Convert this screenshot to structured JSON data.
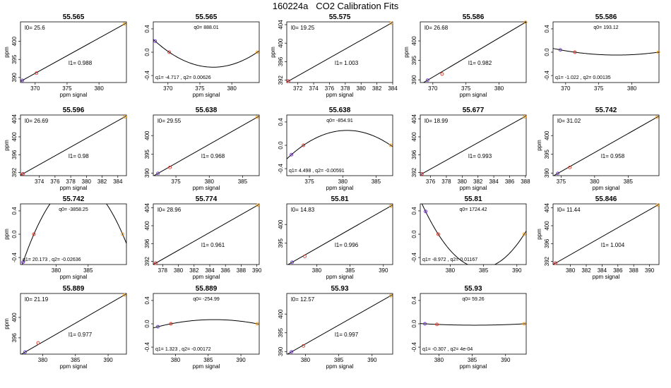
{
  "title": "160224a   CO2 Calibration Fits",
  "colors": {
    "point1": "#6b2bd6",
    "point2": "#e0301e",
    "point3": "#f5a623",
    "line": "#000000"
  },
  "chart_data": [
    {
      "type": "line",
      "title": "55.565",
      "xlabel": "ppm signal",
      "ylabel": "ppm",
      "xticks": [
        "370",
        "375",
        "380"
      ],
      "yticks": [
        "390",
        "395",
        "400"
      ],
      "xlim": [
        367.7,
        384.3
      ],
      "ylim": [
        388.6,
        405.4
      ],
      "points": [
        {
          "x": 368.0,
          "y": 389.2
        },
        {
          "x": 370.2,
          "y": 391.2
        },
        {
          "x": 384.0,
          "y": 404.8
        }
      ],
      "coef_labels": [
        "l0= 25.6",
        "l1= 0.988"
      ]
    },
    {
      "type": "curve",
      "title": "55.565",
      "xlabel": "ppm signal",
      "ylabel": "",
      "xticks": [
        "370",
        "375",
        "380"
      ],
      "yticks": [
        "-0.4",
        "0.0",
        "0.4"
      ],
      "xlim": [
        367.7,
        384.3
      ],
      "ylim": [
        -0.52,
        0.52
      ],
      "points": [
        {
          "x": 368.0,
          "y": 0.19
        },
        {
          "x": 370.2,
          "y": 0.0
        },
        {
          "x": 384.0,
          "y": 0.0
        }
      ],
      "coef_labels": [
        "q0= 888.01",
        "q1= -4.717 , q2= 0.00626"
      ]
    },
    {
      "type": "line",
      "title": "55.575",
      "xlabel": "ppm signal",
      "ylabel": "ppm",
      "xticks": [
        "372",
        "374",
        "376",
        "378",
        "380",
        "382",
        "384"
      ],
      "yticks": [
        "392",
        "396",
        "400",
        "404"
      ],
      "xlim": [
        370.6,
        384.0
      ],
      "ylim": [
        391.5,
        404.6
      ],
      "points": [
        {
          "x": 370.8,
          "y": 391.8
        },
        {
          "x": 370.8,
          "y": 391.8
        },
        {
          "x": 383.8,
          "y": 404.3
        }
      ],
      "coef_labels": [
        "l0= 19.25",
        "l1= 1.003"
      ]
    },
    {
      "type": "line",
      "title": "55.586",
      "xlabel": "ppm signal",
      "ylabel": "ppm",
      "xticks": [
        "370",
        "375",
        "380"
      ],
      "yticks": [
        "390",
        "395",
        "400"
      ],
      "xlim": [
        368.1,
        384.1
      ],
      "ylim": [
        389.3,
        404.9
      ],
      "points": [
        {
          "x": 369.2,
          "y": 389.9
        },
        {
          "x": 371.4,
          "y": 391.5
        },
        {
          "x": 384.0,
          "y": 404.8
        }
      ],
      "coef_labels": [
        "l0= 26.68",
        "l1= 0.982"
      ]
    },
    {
      "type": "curve",
      "title": "55.586",
      "xlabel": "",
      "ylabel": "",
      "xticks": [
        "370",
        "375",
        "380"
      ],
      "yticks": [
        "-0.4",
        "0.0",
        "0.4"
      ],
      "xlim": [
        368.1,
        384.1
      ],
      "ylim": [
        -0.52,
        0.52
      ],
      "points": [
        {
          "x": 369.2,
          "y": 0.04
        },
        {
          "x": 371.4,
          "y": 0.0
        },
        {
          "x": 384.0,
          "y": 0.0
        }
      ],
      "coef_labels": [
        "q0= 193.12",
        "q1= -1.022 , q2= 0.00135"
      ]
    },
    {
      "type": "line",
      "title": "55.596",
      "xlabel": "ppm signal",
      "ylabel": "ppm",
      "xticks": [
        "374",
        "376",
        "378",
        "380",
        "382",
        "384"
      ],
      "yticks": [
        "392",
        "396",
        "400",
        "404"
      ],
      "xlim": [
        371.6,
        385.1
      ],
      "ylim": [
        391.3,
        404.9
      ],
      "points": [
        {
          "x": 371.9,
          "y": 391.7
        },
        {
          "x": 371.9,
          "y": 391.7
        },
        {
          "x": 384.9,
          "y": 404.5
        }
      ],
      "coef_labels": [
        "l0= 26.69",
        "l1= 0.98"
      ]
    },
    {
      "type": "line",
      "title": "55.638",
      "xlabel": "ppm signal",
      "ylabel": "",
      "xticks": [
        "375",
        "380",
        "385"
      ],
      "yticks": [
        "390",
        "395",
        "400"
      ],
      "xlim": [
        371.6,
        387.5
      ],
      "ylim": [
        389.3,
        405.5
      ],
      "points": [
        {
          "x": 372.3,
          "y": 389.9
        },
        {
          "x": 374.1,
          "y": 391.5
        },
        {
          "x": 387.2,
          "y": 404.9
        }
      ],
      "coef_labels": [
        "l0= 29.55",
        "l1= 0.968"
      ]
    },
    {
      "type": "curve",
      "title": "55.638",
      "xlabel": "ppm signal",
      "ylabel": "",
      "xticks": [
        "375",
        "380",
        "385"
      ],
      "yticks": [
        "-0.4",
        "0.0",
        "0.4"
      ],
      "xlim": [
        371.6,
        387.5
      ],
      "ylim": [
        -0.52,
        0.52
      ],
      "points": [
        {
          "x": 372.3,
          "y": -0.16
        },
        {
          "x": 374.1,
          "y": 0.0
        },
        {
          "x": 387.2,
          "y": 0.0
        }
      ],
      "coef_labels": [
        "q0= -854.91",
        "q1= 4.498 , q2= -0.00591"
      ]
    },
    {
      "type": "line",
      "title": "55.677",
      "xlabel": "ppm signal",
      "ylabel": "",
      "xticks": [
        "376",
        "378",
        "380",
        "382",
        "384",
        "386",
        "388"
      ],
      "yticks": [
        "392",
        "396",
        "400",
        "404"
      ],
      "xlim": [
        374.7,
        388.1
      ],
      "ylim": [
        391.3,
        404.9
      ],
      "points": [
        {
          "x": 374.9,
          "y": 391.7
        },
        {
          "x": 374.9,
          "y": 391.7
        },
        {
          "x": 387.9,
          "y": 404.5
        }
      ],
      "coef_labels": [
        "l0= 18.99",
        "l1= 0.993"
      ]
    },
    {
      "type": "line",
      "title": "55.742",
      "xlabel": "ppm signal",
      "ylabel": "ppm",
      "xticks": [
        "375",
        "380",
        "385"
      ],
      "yticks": [
        "390",
        "395",
        "400"
      ],
      "xlim": [
        373.8,
        389.6
      ],
      "ylim": [
        389.3,
        405.5
      ],
      "points": [
        {
          "x": 374.5,
          "y": 389.9
        },
        {
          "x": 376.3,
          "y": 391.5
        },
        {
          "x": 389.3,
          "y": 404.9
        }
      ],
      "coef_labels": [
        "l0= 31.02",
        "l1= 0.958"
      ]
    },
    {
      "type": "curve",
      "title": "55.742",
      "xlabel": "ppm signal",
      "ylabel": "ppm",
      "xticks": [
        "380",
        "385"
      ],
      "yticks": [
        "-0.4",
        "0.0",
        "0.4"
      ],
      "xlim": [
        374.4,
        391.0
      ],
      "ylim": [
        -0.52,
        0.52
      ],
      "points": [
        {
          "x": 374.8,
          "y": -0.48
        },
        {
          "x": 376.5,
          "y": 0.0
        },
        {
          "x": 390.4,
          "y": 0.0
        }
      ],
      "coef_labels": [
        "q0= -3858.25",
        "q1= 20.173 , q2= -0.02636"
      ]
    },
    {
      "type": "line",
      "title": "55.774",
      "xlabel": "ppm signal",
      "ylabel": "",
      "xticks": [
        "378",
        "380",
        "382",
        "384",
        "386",
        "388",
        "390"
      ],
      "yticks": [
        "392",
        "396",
        "400",
        "404"
      ],
      "xlim": [
        376.8,
        390.3
      ],
      "ylim": [
        391.3,
        404.9
      ],
      "points": [
        {
          "x": 377.1,
          "y": 391.6
        },
        {
          "x": 377.1,
          "y": 391.6
        },
        {
          "x": 390.1,
          "y": 404.6
        }
      ],
      "coef_labels": [
        "l0= 28.96",
        "l1= 0.961"
      ]
    },
    {
      "type": "line",
      "title": "55.81",
      "xlabel": "ppm signal",
      "ylabel": "",
      "xticks": [
        "380",
        "385",
        "390"
      ],
      "yticks": [
        "395",
        "400"
      ],
      "xlim": [
        375.5,
        391.4
      ],
      "ylim": [
        389.3,
        405.5
      ],
      "points": [
        {
          "x": 376.3,
          "y": 389.9
        },
        {
          "x": 378.2,
          "y": 391.5
        },
        {
          "x": 391.1,
          "y": 404.9
        }
      ],
      "coef_labels": [
        "l0= 14.83",
        "l1= 0.996"
      ]
    },
    {
      "type": "curve",
      "title": "55.81",
      "xlabel": "",
      "ylabel": "",
      "xticks": [
        "380",
        "385",
        "390"
      ],
      "yticks": [
        "-0.4",
        "0.0",
        "0.4"
      ],
      "xlim": [
        375.5,
        391.4
      ],
      "ylim": [
        -0.52,
        0.52
      ],
      "points": [
        {
          "x": 376.3,
          "y": 0.39
        },
        {
          "x": 378.2,
          "y": 0.0
        },
        {
          "x": 391.1,
          "y": 0.0
        }
      ],
      "coef_labels": [
        "q0= 1724.42",
        "q1= -8.972 , q2= 0.01167"
      ]
    },
    {
      "type": "line",
      "title": "55.846",
      "xlabel": "ppm signal",
      "ylabel": "ppm",
      "xticks": [
        "380",
        "382",
        "384",
        "386",
        "388",
        "390"
      ],
      "yticks": [
        "392",
        "396",
        "400",
        "404"
      ],
      "xlim": [
        377.8,
        391.2
      ],
      "ylim": [
        391.3,
        404.9
      ],
      "points": [
        {
          "x": 378.1,
          "y": 391.6
        },
        {
          "x": 378.1,
          "y": 391.6
        },
        {
          "x": 391.0,
          "y": 404.6
        }
      ],
      "coef_labels": [
        "l0= 11.44",
        "l1= 1.004"
      ]
    },
    {
      "type": "line",
      "title": "55.889",
      "xlabel": "ppm signal",
      "ylabel": "ppm",
      "xticks": [
        "380",
        "385",
        "390"
      ],
      "yticks": [
        "396",
        "400"
      ],
      "xlim": [
        376.6,
        392.8
      ],
      "ylim": [
        392.8,
        404.7
      ],
      "points": [
        {
          "x": 377.3,
          "y": 393.2
        },
        {
          "x": 379.3,
          "y": 395.0
        },
        {
          "x": 392.5,
          "y": 404.4
        }
      ],
      "coef_labels": [
        "l0= 21.19",
        "l1= 0.977"
      ]
    },
    {
      "type": "curve",
      "title": "55.889",
      "xlabel": "ppm signal",
      "ylabel": "",
      "xticks": [
        "380",
        "385",
        "390"
      ],
      "yticks": [
        "-0.4",
        "0.0",
        "0.4"
      ],
      "xlim": [
        376.6,
        392.8
      ],
      "ylim": [
        -0.52,
        0.52
      ],
      "points": [
        {
          "x": 377.3,
          "y": -0.05
        },
        {
          "x": 379.3,
          "y": 0.0
        },
        {
          "x": 392.5,
          "y": 0.0
        }
      ],
      "coef_labels": [
        "q0= -254.99",
        "q1= 1.323 , q2= -0.00172"
      ]
    },
    {
      "type": "line",
      "title": "55.93",
      "xlabel": "ppm signal",
      "ylabel": "",
      "xticks": [
        "380",
        "385",
        "390"
      ],
      "yticks": [
        "390",
        "395",
        "400"
      ],
      "xlim": [
        377.2,
        393.1
      ],
      "ylim": [
        389.3,
        405.5
      ],
      "points": [
        {
          "x": 377.9,
          "y": 389.9
        },
        {
          "x": 379.7,
          "y": 391.5
        },
        {
          "x": 392.8,
          "y": 404.9
        }
      ],
      "coef_labels": [
        "l0= 12.57",
        "l1= 0.997"
      ]
    },
    {
      "type": "curve",
      "title": "55.93",
      "xlabel": "ppm signal",
      "ylabel": "",
      "xticks": [
        "380",
        "385",
        "390"
      ],
      "yticks": [
        "-0.4",
        "0.0",
        "0.4"
      ],
      "xlim": [
        377.2,
        393.1
      ],
      "ylim": [
        -0.52,
        0.52
      ],
      "points": [
        {
          "x": 377.9,
          "y": 0.0
        },
        {
          "x": 379.7,
          "y": -0.01
        },
        {
          "x": 392.8,
          "y": 0.0
        }
      ],
      "coef_labels": [
        "q0= 59.26",
        "q1= -0.307 , q2= 4e-04"
      ]
    }
  ]
}
